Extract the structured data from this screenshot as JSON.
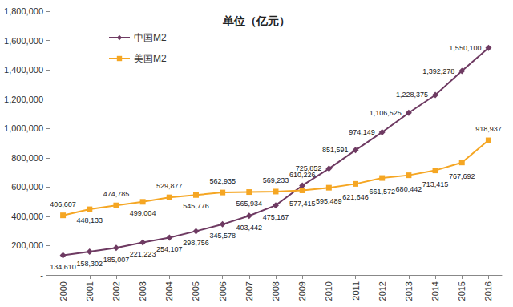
{
  "chart_data": {
    "type": "line",
    "title": "单位（亿元）",
    "categories": [
      "2000",
      "2001",
      "2002",
      "2003",
      "2004",
      "2005",
      "2006",
      "2007",
      "2008",
      "2009",
      "2010",
      "2011",
      "2012",
      "2013",
      "2014",
      "2015",
      "2016"
    ],
    "series": [
      {
        "name": "中国M2",
        "color": "#6e3a62",
        "marker": "diamond",
        "values": [
          134610,
          158302,
          185007,
          221223,
          254107,
          298756,
          345578,
          403442,
          475167,
          610226,
          725852,
          851591,
          974149,
          1106525,
          1228375,
          1392278,
          1550100
        ],
        "value_labels": [
          "134,610",
          "158,302",
          "185,007",
          "221,223",
          "254,107",
          "298,756",
          "345,578",
          "403,442",
          "475,167",
          "610,226",
          "725,852",
          "851,591",
          "974,149",
          "1,106,525",
          "1,228,375",
          "1,392,278",
          "1,550,100"
        ]
      },
      {
        "name": "美国M2",
        "color": "#f5a623",
        "marker": "square",
        "values": [
          406607,
          448133,
          474785,
          499004,
          529877,
          545776,
          562935,
          565934,
          569233,
          577415,
          595489,
          621646,
          661572,
          680442,
          713415,
          767692,
          918937
        ],
        "value_labels": [
          "406,607",
          "448,133",
          "474,785",
          "499,004",
          "529,877",
          "545,776",
          "562,935",
          "565,934",
          "569,233",
          "577,415",
          "595,489",
          "621,646",
          "661,572",
          "680,442",
          "713,415",
          "767,692",
          "918,937"
        ]
      }
    ],
    "ylim": [
      0,
      1800000
    ],
    "yticks": [
      {
        "value": 0,
        "label": "-"
      },
      {
        "value": 200000,
        "label": "200,000"
      },
      {
        "value": 400000,
        "label": "400,000"
      },
      {
        "value": 600000,
        "label": "600,000"
      },
      {
        "value": 800000,
        "label": "800,000"
      },
      {
        "value": 1000000,
        "label": "1,000,000"
      },
      {
        "value": 1200000,
        "label": "1,200,000"
      },
      {
        "value": 1400000,
        "label": "1,400,000"
      },
      {
        "value": 1600000,
        "label": "1,600,000"
      },
      {
        "value": 1800000,
        "label": "1,800,000"
      }
    ],
    "grid": false,
    "legend": "upper left",
    "data_labels": true
  }
}
